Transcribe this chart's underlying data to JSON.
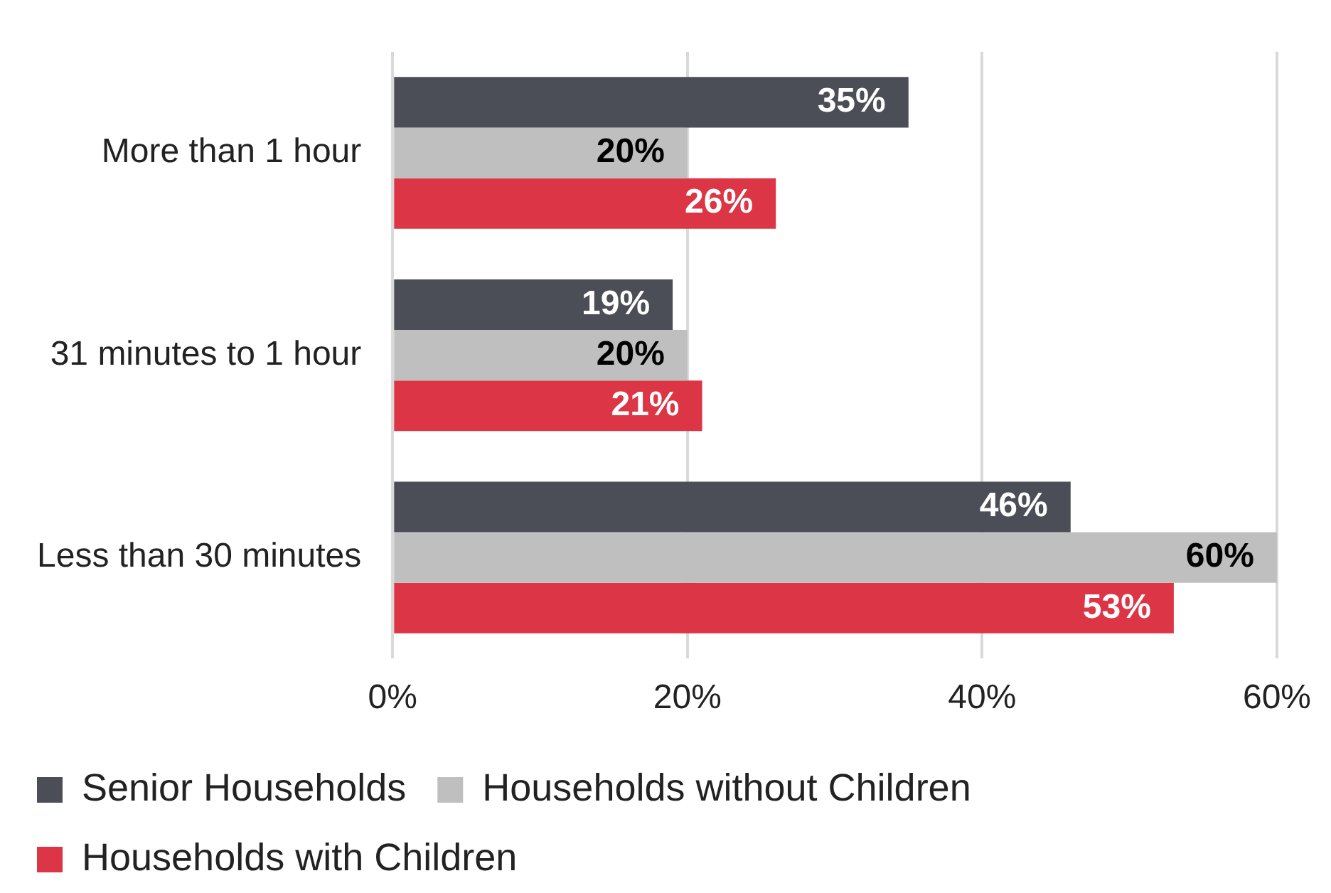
{
  "chart_data": {
    "type": "bar",
    "orientation": "horizontal",
    "categories": [
      "More than 1 hour",
      "31 minutes to 1 hour",
      "Less than 30 minutes"
    ],
    "series": [
      {
        "name": "Senior Households",
        "color": "#4b4e57",
        "values": [
          35,
          19,
          46
        ],
        "value_labels": [
          "35%",
          "19%",
          "46%"
        ]
      },
      {
        "name": "Households without Children",
        "color": "#bfbfbf",
        "values": [
          20,
          20,
          60
        ],
        "value_labels": [
          "20%",
          "20%",
          "60%"
        ]
      },
      {
        "name": "Households with Children",
        "color": "#dc3545",
        "values": [
          26,
          21,
          53
        ],
        "value_labels": [
          "26%",
          "21%",
          "53%"
        ]
      }
    ],
    "xlim": [
      0,
      60
    ],
    "xticks": [
      {
        "value": 0,
        "label": "0%"
      },
      {
        "value": 20,
        "label": "20%"
      },
      {
        "value": 40,
        "label": "40%"
      },
      {
        "value": 60,
        "label": "60%"
      }
    ],
    "grid": "x",
    "legend": "bottom"
  }
}
